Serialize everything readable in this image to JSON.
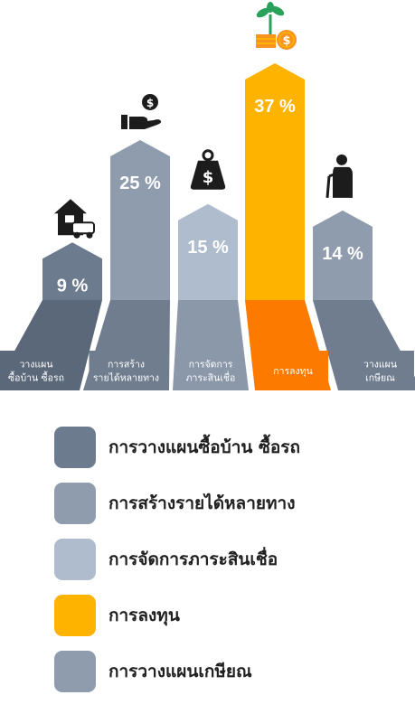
{
  "chart_data": {
    "type": "bar",
    "categories": [
      "วางแผนซื้อบ้าน ซื้อรถ",
      "การสร้างรายได้หลายทาง",
      "การจัดการภาระสินเชื่อ",
      "การลงทุน",
      "วางแผนเกษียณ"
    ],
    "value_labels": [
      "9 %",
      "25 %",
      "15 %",
      "37 %",
      "14 %"
    ],
    "values": [
      9,
      25,
      15,
      37,
      14
    ],
    "base_labels": [
      [
        "วางแผน",
        "ซื้อบ้าน ซื้อรถ"
      ],
      [
        "การสร้าง",
        "รายได้หลายทาง"
      ],
      [
        "การจัดการ",
        "ภาระสินเชื่อ"
      ],
      [
        "การลงทุน"
      ],
      [
        "วางแผน",
        "เกษียณ"
      ]
    ],
    "icons": [
      "house-car-icon",
      "hand-money-icon",
      "money-bag-icon",
      "plant-coins-icon",
      "elderly-person-icon"
    ],
    "colors": [
      "#6c7b8d",
      "#8e9cae",
      "#aebcce",
      "#fdb300",
      "#8e9cae"
    ],
    "base_colors": [
      "#5a6879",
      "#6f7d8f",
      "#8a98aa",
      "#fc7a00",
      "#6f7d8f"
    ],
    "ylim": [
      0,
      37
    ]
  },
  "legend": [
    {
      "label": "การวางแผนซื้อบ้าน ซื้อรถ",
      "color": "#6c7b8d"
    },
    {
      "label": "การสร้างรายได้หลายทาง",
      "color": "#8e9cae"
    },
    {
      "label": "การจัดการภาระสินเชื่อ",
      "color": "#aebcce"
    },
    {
      "label": "การลงทุน",
      "color": "#fdb300"
    },
    {
      "label": "การวางแผนเกษียณ",
      "color": "#8e9cae"
    }
  ]
}
